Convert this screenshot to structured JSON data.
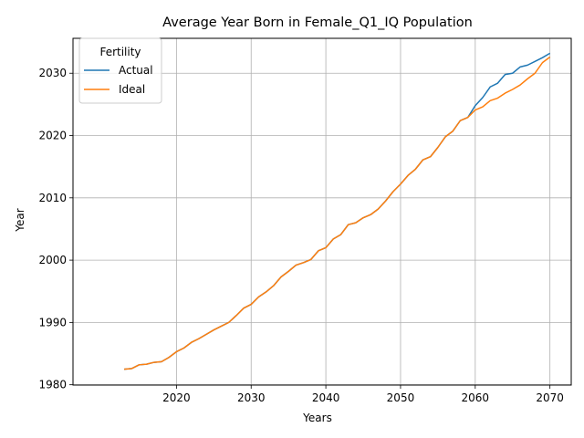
{
  "chart_data": {
    "type": "line",
    "title": "Average Year Born in Female_Q1_IQ Population",
    "xlabel": "Years",
    "ylabel": "Year",
    "xlim": [
      2006.15,
      2072.85
    ],
    "ylim": [
      1979.95,
      2035.6
    ],
    "xticks": [
      2020,
      2030,
      2040,
      2050,
      2060,
      2070
    ],
    "yticks": [
      1980,
      1990,
      2000,
      2010,
      2020,
      2030
    ],
    "grid": true,
    "legend": {
      "title": "Fertility",
      "position": "upper-left"
    },
    "series": [
      {
        "name": "Actual",
        "color": "#1f77b4",
        "x": [
          2013,
          2014,
          2015,
          2016,
          2017,
          2018,
          2019,
          2020,
          2021,
          2022,
          2023,
          2024,
          2025,
          2026,
          2027,
          2028,
          2029,
          2030,
          2031,
          2032,
          2033,
          2034,
          2035,
          2036,
          2037,
          2038,
          2039,
          2040,
          2041,
          2042,
          2043,
          2044,
          2045,
          2046,
          2047,
          2048,
          2049,
          2050,
          2051,
          2052,
          2053,
          2054,
          2055,
          2056,
          2057,
          2058,
          2059,
          2060,
          2061,
          2062,
          2063,
          2064,
          2065,
          2066,
          2067,
          2068,
          2069,
          2070
        ],
        "y": [
          1982.5,
          1982.6,
          1983.2,
          1983.3,
          1983.6,
          1983.7,
          1984.4,
          1985.3,
          1985.9,
          1986.8,
          1987.4,
          1988.1,
          1988.8,
          1989.4,
          1990.0,
          1991.1,
          1992.3,
          1992.9,
          1994.1,
          1994.9,
          1995.9,
          1997.3,
          1998.2,
          1999.2,
          1999.6,
          2000.1,
          2001.5,
          2002.0,
          2003.4,
          2004.1,
          2005.7,
          2006.0,
          2006.8,
          2007.3,
          2008.2,
          2009.5,
          2011.0,
          2012.2,
          2013.6,
          2014.6,
          2016.1,
          2016.6,
          2018.1,
          2019.8,
          2020.7,
          2022.4,
          2022.9,
          2024.8,
          2026.1,
          2027.8,
          2028.4,
          2029.8,
          2030.0,
          2031.0,
          2031.3,
          2031.9,
          2032.5,
          2033.2
        ]
      },
      {
        "name": "Ideal",
        "color": "#ff7f0e",
        "x": [
          2013,
          2014,
          2015,
          2016,
          2017,
          2018,
          2019,
          2020,
          2021,
          2022,
          2023,
          2024,
          2025,
          2026,
          2027,
          2028,
          2029,
          2030,
          2031,
          2032,
          2033,
          2034,
          2035,
          2036,
          2037,
          2038,
          2039,
          2040,
          2041,
          2042,
          2043,
          2044,
          2045,
          2046,
          2047,
          2048,
          2049,
          2050,
          2051,
          2052,
          2053,
          2054,
          2055,
          2056,
          2057,
          2058,
          2059,
          2060,
          2061,
          2062,
          2063,
          2064,
          2065,
          2066,
          2067,
          2068,
          2069,
          2070
        ],
        "y": [
          1982.5,
          1982.6,
          1983.2,
          1983.3,
          1983.6,
          1983.7,
          1984.4,
          1985.3,
          1985.9,
          1986.8,
          1987.4,
          1988.1,
          1988.8,
          1989.4,
          1990.0,
          1991.1,
          1992.3,
          1992.9,
          1994.1,
          1994.9,
          1995.9,
          1997.3,
          1998.2,
          1999.2,
          1999.6,
          2000.1,
          2001.5,
          2002.0,
          2003.4,
          2004.1,
          2005.7,
          2006.0,
          2006.8,
          2007.3,
          2008.2,
          2009.5,
          2011.0,
          2012.2,
          2013.6,
          2014.6,
          2016.1,
          2016.6,
          2018.1,
          2019.8,
          2020.7,
          2022.4,
          2022.9,
          2024.1,
          2024.6,
          2025.6,
          2026.0,
          2026.8,
          2027.4,
          2028.1,
          2029.1,
          2030.0,
          2031.7,
          2032.6
        ]
      }
    ]
  }
}
